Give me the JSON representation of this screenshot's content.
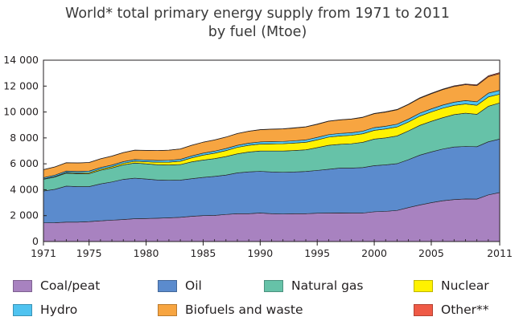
{
  "chart_data": {
    "type": "area",
    "title_lines": [
      "World* total primary energy supply from 1971 to 2011",
      "by fuel (Mtoe)"
    ],
    "x": [
      1971,
      1972,
      1973,
      1974,
      1975,
      1976,
      1977,
      1978,
      1979,
      1980,
      1981,
      1982,
      1983,
      1984,
      1985,
      1986,
      1987,
      1988,
      1989,
      1990,
      1991,
      1992,
      1993,
      1994,
      1995,
      1996,
      1997,
      1998,
      1999,
      2000,
      2001,
      2002,
      2003,
      2004,
      2005,
      2006,
      2007,
      2008,
      2009,
      2010,
      2011
    ],
    "xticks": [
      1971,
      1975,
      1980,
      1985,
      1990,
      1995,
      2000,
      2005,
      2011
    ],
    "xtick_labels": [
      "1971",
      "1975",
      "1980",
      "1985",
      "1990",
      "1995",
      "2000",
      "2005",
      "2011"
    ],
    "yticks": [
      0,
      2000,
      4000,
      6000,
      8000,
      10000,
      12000,
      14000
    ],
    "ytick_labels": [
      "0",
      "2 000",
      "4 000",
      "6 000",
      "8 000",
      "10 000",
      "12 000",
      "14 000"
    ],
    "xlim": [
      1971,
      2011
    ],
    "ylim": [
      0,
      14000
    ],
    "stacked": true,
    "grid": false,
    "legend_position": "bottom",
    "series": [
      {
        "name": "Coal/peat",
        "color": "#a882c0",
        "values": [
          1440,
          1450,
          1500,
          1500,
          1540,
          1600,
          1650,
          1700,
          1760,
          1780,
          1800,
          1830,
          1870,
          1950,
          2000,
          2020,
          2090,
          2150,
          2150,
          2200,
          2150,
          2130,
          2150,
          2150,
          2190,
          2200,
          2210,
          2200,
          2200,
          2300,
          2330,
          2400,
          2620,
          2820,
          3000,
          3150,
          3240,
          3290,
          3280,
          3600,
          3780
        ]
      },
      {
        "name": "Oil",
        "color": "#5b8bcd",
        "values": [
          2460,
          2580,
          2780,
          2740,
          2700,
          2850,
          2950,
          3100,
          3130,
          3050,
          2950,
          2900,
          2870,
          2900,
          2950,
          3010,
          3040,
          3150,
          3230,
          3220,
          3220,
          3220,
          3220,
          3260,
          3300,
          3380,
          3460,
          3470,
          3510,
          3560,
          3590,
          3610,
          3700,
          3850,
          3920,
          3990,
          4060,
          4050,
          4040,
          4100,
          4130
        ]
      },
      {
        "name": "Natural gas",
        "color": "#66c2a8",
        "values": [
          900,
          950,
          1000,
          1000,
          1000,
          1050,
          1080,
          1120,
          1170,
          1170,
          1180,
          1180,
          1200,
          1300,
          1340,
          1370,
          1430,
          1470,
          1530,
          1570,
          1620,
          1640,
          1660,
          1670,
          1760,
          1850,
          1840,
          1880,
          1950,
          2050,
          2080,
          2140,
          2220,
          2300,
          2360,
          2420,
          2500,
          2570,
          2500,
          2740,
          2790
        ]
      },
      {
        "name": "Nuclear",
        "color": "#fff200",
        "values": [
          30,
          40,
          50,
          60,
          80,
          90,
          100,
          120,
          140,
          160,
          190,
          220,
          260,
          310,
          380,
          420,
          460,
          500,
          520,
          530,
          550,
          560,
          570,
          580,
          600,
          630,
          640,
          650,
          660,
          675,
          690,
          695,
          690,
          715,
          725,
          730,
          710,
          710,
          700,
          720,
          675
        ]
      },
      {
        "name": "Hydro",
        "color": "#4fc3f0",
        "values": [
          100,
          105,
          110,
          115,
          120,
          122,
          124,
          126,
          130,
          135,
          138,
          142,
          145,
          150,
          155,
          158,
          160,
          162,
          165,
          170,
          175,
          178,
          182,
          186,
          190,
          195,
          198,
          200,
          205,
          210,
          212,
          215,
          220,
          228,
          236,
          245,
          250,
          265,
          270,
          295,
          300
        ]
      },
      {
        "name": "Biofuels and waste",
        "color": "#f7a541",
        "values": [
          620,
          630,
          640,
          650,
          660,
          670,
          690,
          700,
          720,
          740,
          760,
          780,
          800,
          820,
          840,
          860,
          880,
          900,
          920,
          940,
          950,
          960,
          980,
          1000,
          1010,
          1030,
          1040,
          1050,
          1060,
          1070,
          1090,
          1110,
          1130,
          1150,
          1170,
          1190,
          1210,
          1230,
          1250,
          1270,
          1290
        ]
      },
      {
        "name": "Other**",
        "color": "#ef5a46",
        "values": [
          10,
          10,
          10,
          10,
          10,
          10,
          10,
          10,
          10,
          10,
          10,
          10,
          10,
          10,
          10,
          10,
          10,
          10,
          10,
          20,
          20,
          20,
          20,
          20,
          20,
          20,
          20,
          20,
          20,
          30,
          30,
          30,
          30,
          40,
          40,
          40,
          50,
          50,
          60,
          70,
          80
        ]
      }
    ]
  }
}
